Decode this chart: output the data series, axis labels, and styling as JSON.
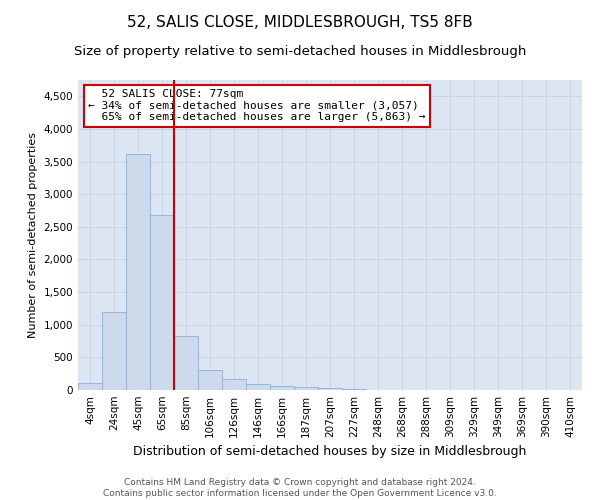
{
  "title": "52, SALIS CLOSE, MIDDLESBROUGH, TS5 8FB",
  "subtitle": "Size of property relative to semi-detached houses in Middlesbrough",
  "xlabel": "Distribution of semi-detached houses by size in Middlesbrough",
  "ylabel": "Number of semi-detached properties",
  "footer_line1": "Contains HM Land Registry data © Crown copyright and database right 2024.",
  "footer_line2": "Contains public sector information licensed under the Open Government Licence v3.0.",
  "property_label": "52 SALIS CLOSE: 77sqm",
  "pct_smaller": 34,
  "pct_larger": 65,
  "count_smaller": 3057,
  "count_larger": 5863,
  "bar_color": "#ccdaec",
  "bar_edge_color": "#8db0d4",
  "vline_color": "#cc0000",
  "annotation_box_edge": "#cc0000",
  "annotation_box_face": "#ffffff",
  "grid_color": "#c8d4e4",
  "bg_color": "#dce6f2",
  "categories": [
    "4sqm",
    "24sqm",
    "45sqm",
    "65sqm",
    "85sqm",
    "106sqm",
    "126sqm",
    "146sqm",
    "166sqm",
    "187sqm",
    "207sqm",
    "227sqm",
    "248sqm",
    "268sqm",
    "288sqm",
    "309sqm",
    "329sqm",
    "349sqm",
    "369sqm",
    "390sqm",
    "410sqm"
  ],
  "values": [
    100,
    1200,
    3620,
    2680,
    830,
    310,
    165,
    90,
    65,
    50,
    30,
    15,
    0,
    0,
    0,
    0,
    0,
    0,
    0,
    0,
    0
  ],
  "ylim": [
    0,
    4750
  ],
  "yticks": [
    0,
    500,
    1000,
    1500,
    2000,
    2500,
    3000,
    3500,
    4000,
    4500
  ],
  "vline_x_index": 2.5,
  "title_fontsize": 11,
  "subtitle_fontsize": 9.5,
  "ylabel_fontsize": 8,
  "xlabel_fontsize": 9,
  "tick_fontsize": 7.5,
  "annotation_fontsize": 8,
  "footer_fontsize": 6.5
}
